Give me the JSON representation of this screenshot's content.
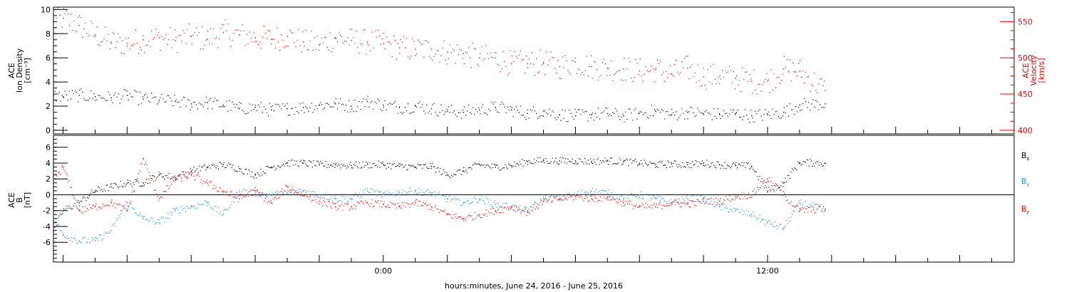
{
  "chart_data": [
    {
      "type": "scatter",
      "panel": "top",
      "ylabel_left": [
        "ACE",
        "Ion Density",
        "[cm⁻³]"
      ],
      "ylabel_right": [
        "ACE",
        "Velocity",
        "[km/s]"
      ],
      "ylim_left": [
        -0.3,
        10.2
      ],
      "ylim_right": [
        395,
        570
      ],
      "yticks_left": [
        "0",
        "2",
        "4",
        "6",
        "8",
        "10"
      ],
      "yticks_right": [
        "400",
        "450",
        "500",
        "550"
      ],
      "series": [
        {
          "axis": "right",
          "color": "#ff0000",
          "x": [
            -10.3,
            -10.0,
            -9.5,
            -9.0,
            -8.5,
            -8.0,
            -7.5,
            -7.0,
            -6.5,
            -6.0,
            -5.5,
            -5.0,
            -4.5,
            -4.0,
            -3.5,
            -3.0,
            -2.5,
            -2.0,
            -1.5,
            -1.0,
            -0.5,
            0.0,
            0.5,
            1.0,
            1.5,
            2.0,
            2.5,
            3.0,
            3.5,
            4.0,
            4.5,
            5.0,
            5.5,
            6.0,
            6.5,
            7.0,
            7.5,
            8.0,
            8.5,
            9.0,
            9.5,
            10.0,
            10.5,
            11.0,
            11.5,
            12.0,
            12.5,
            13.0,
            13.8
          ],
          "y": [
            548,
            555,
            545,
            532,
            522,
            520,
            525,
            528,
            524,
            530,
            526,
            535,
            532,
            528,
            526,
            530,
            522,
            518,
            528,
            524,
            522,
            520,
            514,
            512,
            512,
            508,
            506,
            500,
            500,
            492,
            492,
            494,
            488,
            494,
            488,
            486,
            485,
            482,
            484,
            478,
            486,
            474,
            475,
            472,
            468,
            468,
            485,
            482,
            455
          ]
        },
        {
          "axis": "left",
          "color": "#000000",
          "x": [
            -10.3,
            -10.0,
            -9.5,
            -9.0,
            -8.5,
            -8.0,
            -7.5,
            -7.0,
            -6.5,
            -6.0,
            -5.5,
            -5.0,
            -4.5,
            -4.0,
            -3.5,
            -3.0,
            -2.5,
            -2.0,
            -1.5,
            -1.0,
            -0.5,
            0.0,
            0.5,
            1.0,
            1.5,
            2.0,
            2.5,
            3.0,
            3.5,
            4.0,
            4.5,
            5.0,
            5.5,
            6.0,
            6.5,
            7.0,
            7.5,
            8.0,
            8.5,
            9.0,
            9.5,
            10.0,
            10.5,
            11.0,
            11.5,
            12.0,
            12.5,
            13.0,
            13.8
          ],
          "y": [
            2.9,
            2.8,
            2.9,
            2.8,
            2.7,
            2.9,
            2.6,
            2.5,
            2.4,
            2.2,
            2.3,
            2.1,
            1.8,
            1.9,
            1.7,
            1.8,
            1.9,
            2.1,
            2.2,
            2.0,
            2.4,
            2.1,
            1.9,
            2.0,
            1.8,
            1.6,
            1.5,
            1.7,
            1.9,
            1.7,
            1.4,
            1.6,
            1.3,
            1.2,
            1.3,
            1.4,
            1.2,
            1.4,
            1.6,
            1.3,
            1.5,
            1.4,
            1.3,
            1.4,
            1.2,
            1.3,
            1.5,
            2.1,
            2.2
          ]
        }
      ]
    },
    {
      "type": "scatter",
      "panel": "bottom",
      "ylabel_left": [
        "ACE",
        "B",
        "[nT]"
      ],
      "ylim_left": [
        -8.5,
        7.5
      ],
      "yticks_left": [
        "-6",
        "-4",
        "-2",
        "0",
        "2",
        "4",
        "6"
      ],
      "zero_line": true,
      "legend": "right",
      "series": [
        {
          "name": "B",
          "subscript": "x",
          "color": "#000000",
          "x": [
            -10.3,
            -10.0,
            -9.5,
            -9.0,
            -8.5,
            -8.0,
            -7.5,
            -7.0,
            -6.5,
            -6.0,
            -5.5,
            -5.0,
            -4.5,
            -4.0,
            -3.5,
            -3.0,
            -2.5,
            -2.0,
            -1.5,
            -1.0,
            -0.5,
            0.0,
            0.5,
            1.0,
            1.5,
            2.0,
            2.5,
            3.0,
            3.5,
            4.0,
            4.5,
            5.0,
            5.5,
            6.0,
            6.5,
            7.0,
            7.5,
            8.0,
            8.5,
            9.0,
            9.5,
            10.0,
            10.5,
            11.0,
            11.5,
            12.0,
            12.5,
            13.0,
            13.8
          ],
          "y": [
            -4.5,
            -2.0,
            -1.0,
            0.5,
            1.0,
            1.5,
            1.5,
            2.5,
            2.2,
            3.0,
            3.5,
            3.8,
            3.3,
            2.5,
            3.5,
            4.0,
            4.0,
            3.8,
            3.8,
            3.7,
            3.8,
            3.8,
            3.6,
            3.5,
            3.6,
            2.5,
            3.0,
            3.8,
            3.5,
            3.7,
            4.2,
            4.3,
            4.3,
            4.3,
            4.2,
            4.3,
            4.2,
            4.0,
            3.8,
            3.9,
            3.8,
            4.0,
            3.8,
            3.7,
            3.6,
            0.5,
            1.5,
            4.1,
            4.0
          ]
        },
        {
          "name": "B",
          "subscript": "y",
          "color": "#1e90ff",
          "x": [
            -10.3,
            -10.0,
            -9.5,
            -9.0,
            -8.5,
            -8.0,
            -7.5,
            -7.0,
            -6.5,
            -6.0,
            -5.5,
            -5.0,
            -4.5,
            -4.0,
            -3.5,
            -3.0,
            -2.5,
            -2.0,
            -1.5,
            -1.0,
            -0.5,
            0.0,
            0.5,
            1.0,
            1.5,
            2.0,
            2.5,
            3.0,
            3.5,
            4.0,
            4.5,
            5.0,
            5.5,
            6.0,
            6.5,
            7.0,
            7.5,
            8.0,
            8.5,
            9.0,
            9.5,
            10.0,
            10.5,
            11.0,
            11.5,
            12.0,
            12.5,
            13.0,
            13.8
          ],
          "y": [
            -3.0,
            -5.0,
            -5.8,
            -5.8,
            -4.5,
            -1.0,
            -3.0,
            -3.5,
            -2.0,
            -1.5,
            -1.0,
            -2.5,
            0.5,
            0.2,
            0.0,
            0.2,
            0.5,
            0.0,
            -0.5,
            -0.5,
            0.5,
            0.0,
            0.3,
            0.5,
            0.2,
            -0.5,
            -1.0,
            -0.5,
            -1.2,
            -1.5,
            -2.0,
            -0.5,
            -0.5,
            0.0,
            0.5,
            0.2,
            -0.5,
            0.0,
            -0.5,
            -1.0,
            -0.5,
            -0.5,
            -1.5,
            -2.0,
            -2.5,
            -3.5,
            -4.2,
            -1.0,
            -1.8
          ]
        },
        {
          "name": "B",
          "subscript": "z",
          "color": "#ff0000",
          "x": [
            -10.3,
            -10.0,
            -9.5,
            -9.0,
            -8.5,
            -8.0,
            -7.5,
            -7.0,
            -6.5,
            -6.0,
            -5.5,
            -5.0,
            -4.5,
            -4.0,
            -3.5,
            -3.0,
            -2.5,
            -2.0,
            -1.5,
            -1.0,
            -0.5,
            0.0,
            0.5,
            1.0,
            1.5,
            2.0,
            2.5,
            3.0,
            3.5,
            4.0,
            4.5,
            5.0,
            5.5,
            6.0,
            6.5,
            7.0,
            7.5,
            8.0,
            8.5,
            9.0,
            9.5,
            10.0,
            10.5,
            11.0,
            11.5,
            12.0,
            12.5,
            13.0,
            13.8
          ],
          "y": [
            2.0,
            3.5,
            -2.0,
            -1.5,
            -1.0,
            -2.0,
            4.5,
            -0.5,
            2.0,
            2.5,
            1.5,
            0.5,
            -0.5,
            0.5,
            -1.0,
            1.0,
            0.0,
            -0.8,
            -1.5,
            -1.5,
            -1.0,
            -1.2,
            -1.5,
            -1.0,
            -1.5,
            -2.5,
            -3.0,
            -2.5,
            -2.0,
            -1.5,
            -2.2,
            -0.8,
            -0.5,
            -0.2,
            -0.5,
            -0.3,
            -1.0,
            -1.5,
            -1.5,
            -1.0,
            -1.2,
            -0.8,
            -0.8,
            -0.2,
            0.0,
            2.0,
            0.0,
            -2.0,
            -1.8
          ]
        }
      ]
    }
  ],
  "x_axis": {
    "xlim": [
      -10.3,
      19.7
    ],
    "tick_labels": [
      {
        "x": 0,
        "label": "0:00"
      },
      {
        "x": 12,
        "label": "12:00"
      }
    ],
    "xlabel": "hours:minutes, June 24, 2016 - June 25, 2016"
  }
}
